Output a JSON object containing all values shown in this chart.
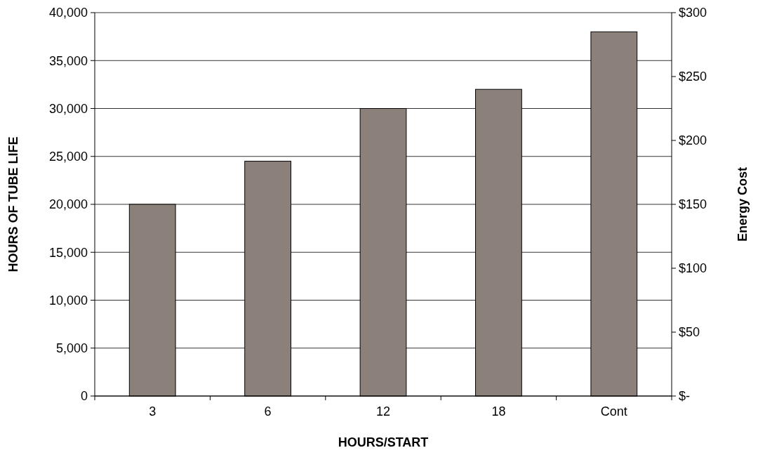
{
  "chart_data": {
    "type": "bar",
    "xlabel": "HOURS/START",
    "ylabel": "HOURS OF TUBE LIFE",
    "y2label": "Energy Cost",
    "categories": [
      "3",
      "6",
      "12",
      "18",
      "Cont"
    ],
    "values": [
      20000,
      24500,
      30000,
      32000,
      38000
    ],
    "color": "#8c807b",
    "ylim": [
      0,
      40000
    ],
    "yticks": [
      {
        "value": 0,
        "label": "0"
      },
      {
        "value": 5000,
        "label": "5,000"
      },
      {
        "value": 10000,
        "label": "10,000"
      },
      {
        "value": 15000,
        "label": "15,000"
      },
      {
        "value": 20000,
        "label": "20,000"
      },
      {
        "value": 25000,
        "label": "25,000"
      },
      {
        "value": 30000,
        "label": "30,000"
      },
      {
        "value": 35000,
        "label": "35,000"
      },
      {
        "value": 40000,
        "label": "40,000"
      }
    ],
    "y2lim": [
      0,
      300
    ],
    "y2ticks": [
      {
        "value": 0,
        "label": "$-"
      },
      {
        "value": 50,
        "label": "$50"
      },
      {
        "value": 100,
        "label": "$100"
      },
      {
        "value": 150,
        "label": "$150"
      },
      {
        "value": 200,
        "label": "$200"
      },
      {
        "value": 250,
        "label": "$250"
      },
      {
        "value": 300,
        "label": "$300"
      }
    ],
    "grid": "y"
  }
}
